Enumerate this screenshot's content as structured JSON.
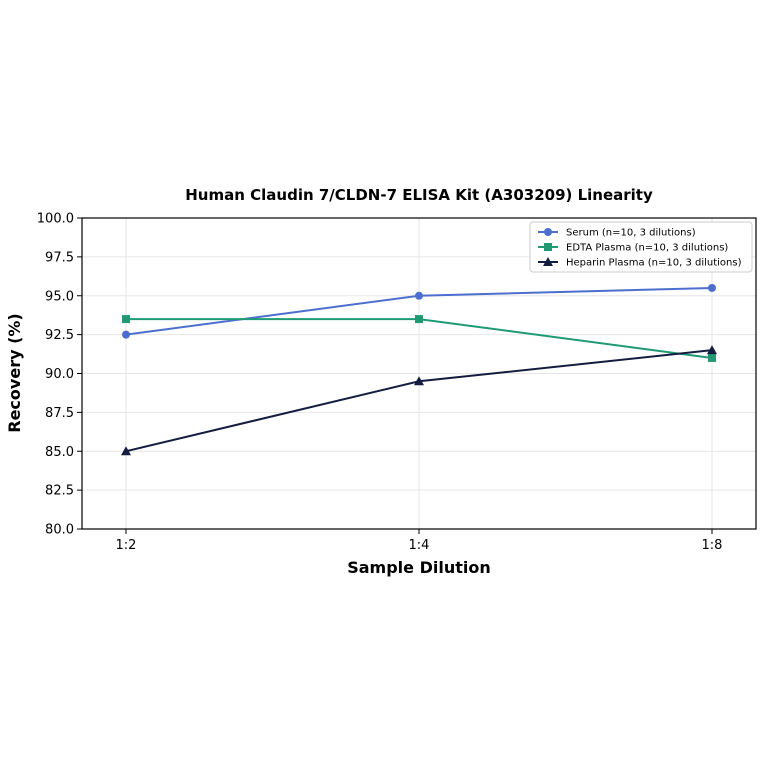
{
  "chart_data": {
    "type": "line",
    "title": "Human Claudin 7/CLDN-7 ELISA Kit (A303209) Linearity",
    "xlabel": "Sample Dilution",
    "ylabel": "Recovery (%)",
    "categories": [
      "1:2",
      "1:4",
      "1:8"
    ],
    "ylim": [
      80.0,
      100.0
    ],
    "yticks": [
      "80.0",
      "82.5",
      "85.0",
      "87.5",
      "90.0",
      "92.5",
      "95.0",
      "97.5",
      "100.0"
    ],
    "grid": true,
    "legend_position": "top-right",
    "series": [
      {
        "name": "Serum (n=10, 3 dilutions)",
        "values": [
          92.5,
          95.0,
          95.5
        ],
        "color": "#4c6fcf",
        "marker": "circle"
      },
      {
        "name": "EDTA Plasma (n=10, 3 dilutions)",
        "values": [
          93.5,
          93.5,
          91.0
        ],
        "color": "#1f9a74",
        "marker": "square"
      },
      {
        "name": "Heparin Plasma (n=10, 3 dilutions)",
        "values": [
          85.0,
          89.5,
          91.5
        ],
        "color": "#131d3f",
        "marker": "triangle"
      }
    ]
  }
}
